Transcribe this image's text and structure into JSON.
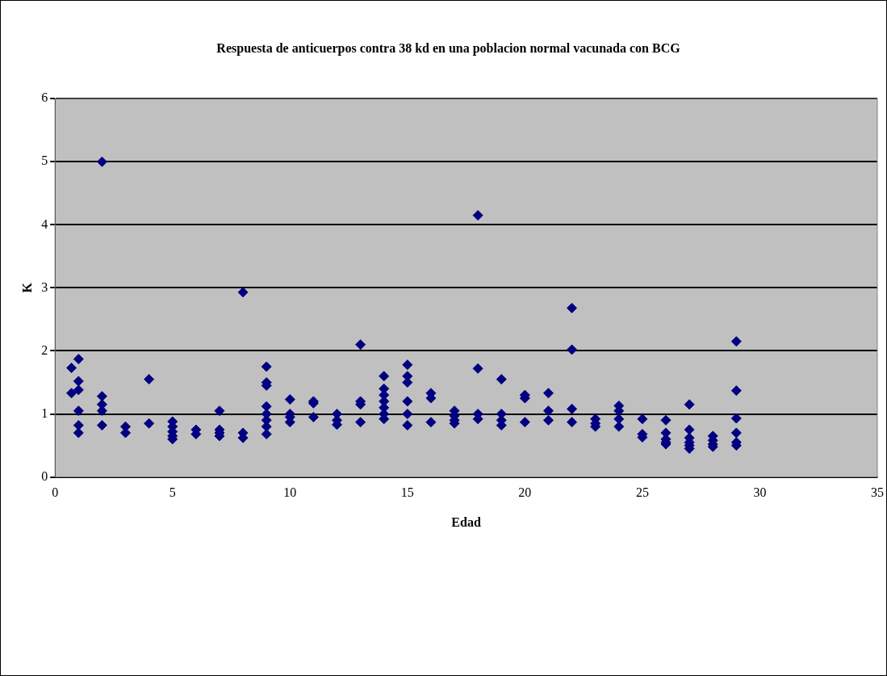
{
  "chart_data": {
    "type": "scatter",
    "title": "Respuesta de anticuerpos contra 38 kd en una poblacion normal vacunada con BCG",
    "xlabel": "Edad",
    "ylabel": "K",
    "x": [
      0.7,
      0.7,
      1,
      1,
      1,
      1,
      1,
      1,
      2,
      2,
      2,
      2,
      2,
      3,
      3,
      4,
      4,
      5,
      5,
      5,
      5,
      5,
      6,
      6,
      7,
      7,
      7,
      7,
      8,
      8,
      8,
      9,
      9,
      9,
      9,
      9,
      9,
      9,
      9,
      10,
      10,
      10,
      10,
      11,
      11,
      11,
      12,
      12,
      12,
      13,
      13,
      13,
      13,
      14,
      14,
      14,
      14,
      14,
      14,
      14,
      15,
      15,
      15,
      15,
      15,
      15,
      16,
      16,
      16,
      17,
      17,
      17,
      17,
      18,
      18,
      18,
      18,
      19,
      19,
      19,
      19,
      20,
      20,
      20,
      21,
      21,
      21,
      22,
      22,
      22,
      22,
      23,
      23,
      23,
      24,
      24,
      24,
      24,
      25,
      25,
      25,
      26,
      26,
      26,
      26,
      26,
      27,
      27,
      27,
      27,
      27,
      27,
      28,
      28,
      28,
      28,
      29,
      29,
      29,
      29,
      29,
      29
    ],
    "values": [
      1.73,
      1.33,
      1.87,
      1.52,
      1.38,
      1.05,
      0.82,
      0.7,
      5.0,
      1.28,
      1.15,
      1.05,
      0.82,
      0.8,
      0.7,
      1.55,
      0.85,
      0.88,
      0.8,
      0.72,
      0.65,
      0.6,
      0.75,
      0.68,
      1.05,
      0.75,
      0.7,
      0.65,
      2.93,
      0.7,
      0.62,
      1.75,
      1.5,
      1.45,
      1.12,
      1.0,
      0.9,
      0.8,
      0.68,
      1.23,
      1.0,
      0.95,
      0.87,
      1.2,
      1.17,
      0.95,
      1.0,
      0.9,
      0.83,
      2.1,
      1.2,
      1.15,
      0.87,
      1.6,
      1.4,
      1.3,
      1.2,
      1.1,
      1.0,
      0.92,
      1.78,
      1.6,
      1.5,
      1.2,
      1.0,
      0.82,
      1.33,
      1.25,
      0.87,
      1.05,
      0.97,
      0.9,
      0.85,
      4.15,
      1.72,
      1.0,
      0.92,
      1.55,
      1.0,
      0.9,
      0.82,
      1.3,
      1.25,
      0.87,
      1.33,
      1.05,
      0.9,
      2.68,
      2.02,
      1.08,
      0.87,
      0.92,
      0.85,
      0.8,
      1.13,
      1.05,
      0.92,
      0.8,
      0.92,
      0.68,
      0.63,
      0.9,
      0.7,
      0.6,
      0.55,
      0.52,
      1.15,
      0.75,
      0.62,
      0.55,
      0.5,
      0.45,
      0.65,
      0.58,
      0.52,
      0.48,
      2.15,
      1.37,
      0.93,
      0.7,
      0.55,
      0.5
    ],
    "color": "#000080",
    "marker": "diamond",
    "xlim": [
      0,
      35
    ],
    "xticks": [
      0,
      5,
      10,
      15,
      20,
      25,
      30,
      35
    ],
    "ylim": [
      0,
      6
    ],
    "yticks": [
      0,
      1,
      2,
      3,
      4,
      5,
      6
    ],
    "grid": "y",
    "legend": false
  }
}
